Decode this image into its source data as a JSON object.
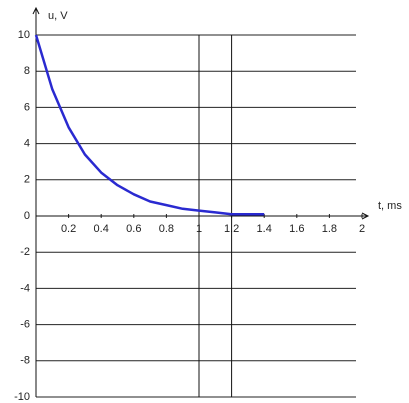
{
  "chart_data": {
    "type": "line",
    "ylabel": "u, V",
    "xlabel": "t, ms",
    "x": [
      0,
      0.1,
      0.2,
      0.3,
      0.4,
      0.5,
      0.6,
      0.7,
      0.8,
      0.9,
      1.0,
      1.1,
      1.2,
      1.3,
      1.4
    ],
    "series": [
      {
        "color": "#2a2ad0",
        "values": [
          10,
          7.0,
          4.9,
          3.4,
          2.4,
          1.7,
          1.2,
          0.8,
          0.6,
          0.4,
          0.3,
          0.2,
          0.1,
          0.1,
          0.1
        ]
      }
    ],
    "markers": [
      1,
      1.2
    ],
    "xlim": [
      0,
      2
    ],
    "xticks": [
      0.2,
      0.4,
      0.6,
      0.8,
      1,
      1.2,
      1.4,
      1.6,
      1.8,
      2
    ],
    "ylim": [
      -10,
      10
    ],
    "yticks": [
      10,
      8,
      6,
      4,
      2,
      0,
      -2,
      -4,
      -6,
      -8,
      -10
    ],
    "grid": true
  }
}
